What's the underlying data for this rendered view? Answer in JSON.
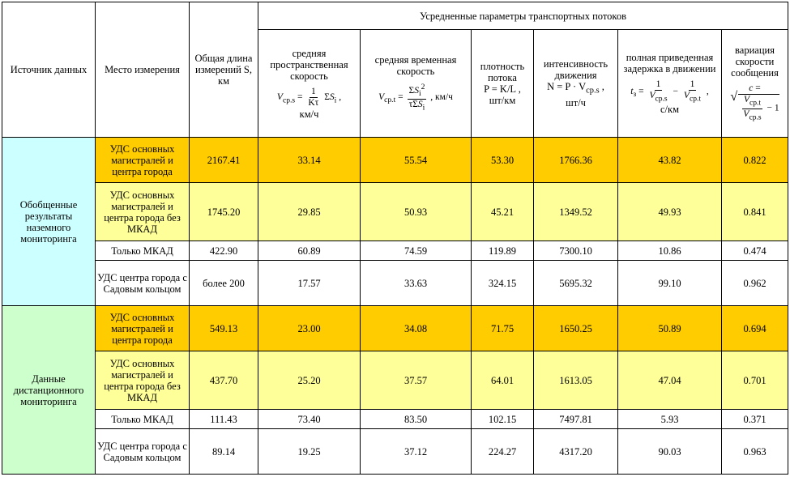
{
  "header": {
    "source": "Источник данных",
    "place": "Место измерения",
    "length": "Общая длина измерений S, км",
    "group": "Усредненные параметры транспортных потоков",
    "params": [
      {
        "title": "средняя пространственная скорость",
        "formula_lhs": "V",
        "formula_sub": "ср.s",
        "unit": "км/ч"
      },
      {
        "title": "средняя временная скорость",
        "formula_lhs": "V",
        "formula_sub": "ср.t",
        "unit": "км/ч"
      },
      {
        "title": "плотность потока",
        "formula": "P = K/L ,",
        "unit": "шт/км"
      },
      {
        "title": "интенсивность движения",
        "formula": "N = P · V",
        "formula_sub": "ср.s",
        "unit": "шт/ч"
      },
      {
        "title": "полная приведенная задержка в движении",
        "formula_lhs": "t",
        "formula_sub": "з",
        "unit": "с/км"
      },
      {
        "title": "вариация скорости сообщения",
        "formula_lhs": "c"
      }
    ]
  },
  "groups": [
    {
      "source": "Обобщенные результаты наземного мониторинга",
      "rows": [
        {
          "place": "УДС основных магистралей и центра города",
          "length": "2167.41",
          "v_s": "33.14",
          "v_t": "55.54",
          "p": "53.30",
          "n": "1766.36",
          "t": "43.82",
          "c": "0.822"
        },
        {
          "place": "УДС основных магистралей и центра города без МКАД",
          "length": "1745.20",
          "v_s": "29.85",
          "v_t": "50.93",
          "p": "45.21",
          "n": "1349.52",
          "t": "49.93",
          "c": "0.841"
        },
        {
          "place": "Только МКАД",
          "length": "422.90",
          "v_s": "60.89",
          "v_t": "74.59",
          "p": "119.89",
          "n": "7300.10",
          "t": "10.86",
          "c": "0.474"
        },
        {
          "place": "УДС центра города с Садовым кольцом",
          "length": "более 200",
          "v_s": "17.57",
          "v_t": "33.63",
          "p": "324.15",
          "n": "5695.32",
          "t": "99.10",
          "c": "0.962"
        }
      ]
    },
    {
      "source": "Данные дистанционного мониторинга",
      "rows": [
        {
          "place": "УДС основных магистралей и центра города",
          "length": "549.13",
          "v_s": "23.00",
          "v_t": "34.08",
          "p": "71.75",
          "n": "1650.25",
          "t": "50.89",
          "c": "0.694"
        },
        {
          "place": "УДС основных магистралей и центра города без МКАД",
          "length": "437.70",
          "v_s": "25.20",
          "v_t": "37.57",
          "p": "64.01",
          "n": "1613.05",
          "t": "47.04",
          "c": "0.701"
        },
        {
          "place": "Только МКАД",
          "length": "111.43",
          "v_s": "73.40",
          "v_t": "83.50",
          "p": "102.15",
          "n": "7497.81",
          "t": "5.93",
          "c": "0.371"
        },
        {
          "place": "УДС центра города с Садовым кольцом",
          "length": "89.14",
          "v_s": "19.25",
          "v_t": "37.12",
          "p": "224.27",
          "n": "4317.20",
          "t": "90.03",
          "c": "0.963"
        }
      ]
    }
  ],
  "colors": {
    "blue": "#ccffff",
    "green": "#ccffcc",
    "orange": "#ffcc00",
    "yellow": "#ffff99"
  }
}
